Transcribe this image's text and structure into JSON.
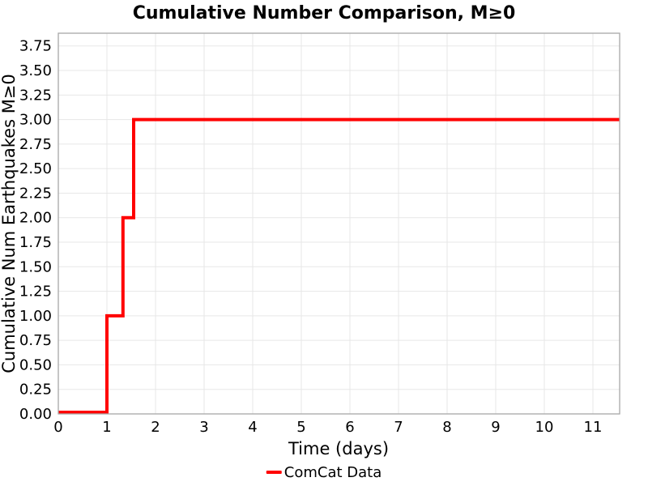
{
  "chart_data": {
    "type": "line",
    "subtype": "cumulative-step",
    "title": "Cumulative Number Comparison, M≥0",
    "xlabel": "Time (days)",
    "ylabel": "Cumulative Num Earthquakes M≥0",
    "xlim": [
      0,
      11.55
    ],
    "ylim": [
      0,
      3.88
    ],
    "xticks": [
      0,
      1,
      2,
      3,
      4,
      5,
      6,
      7,
      8,
      9,
      10,
      11
    ],
    "ytick_labels": [
      "0.00",
      "0.25",
      "0.50",
      "0.75",
      "1.00",
      "1.25",
      "1.50",
      "1.75",
      "2.00",
      "2.25",
      "2.50",
      "2.75",
      "3.00",
      "3.25",
      "3.50",
      "3.75"
    ],
    "grid": true,
    "legend_position": "bottom-center",
    "colors": {
      "background": "#ffffff",
      "grid": "#e7e7e7",
      "spine": "#a8a8a8",
      "text": "#000000"
    },
    "series": [
      {
        "name": "ComCat Data",
        "color": "#ff0000",
        "line_width": 4,
        "event_times_days": [
          1.0,
          1.33,
          1.55
        ],
        "cumulative_counts": [
          1,
          2,
          3
        ],
        "step_points": [
          [
            0,
            0
          ],
          [
            1.0,
            0
          ],
          [
            1.0,
            1
          ],
          [
            1.33,
            1
          ],
          [
            1.33,
            2
          ],
          [
            1.55,
            2
          ],
          [
            1.55,
            3
          ],
          [
            11.55,
            3
          ]
        ]
      }
    ]
  }
}
